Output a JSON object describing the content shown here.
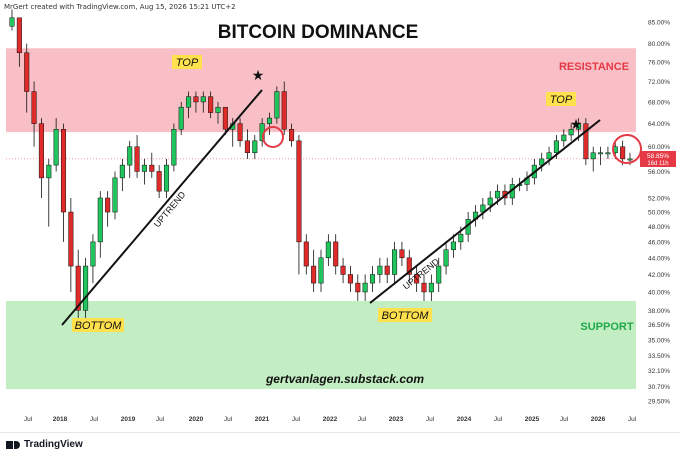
{
  "header": {
    "credit": "MrGert created with TradingView.com, Aug 15, 2026 15:21 UTC+2"
  },
  "footer": {
    "brand": "TradingView"
  },
  "chart_data": {
    "type": "candlestick",
    "title": "BITCOIN DOMINANCE",
    "watermark": "gertvanlagen.substack.com",
    "y_scale": "log",
    "ylim": [
      29.5,
      86
    ],
    "y_ticks": [
      "85.00%",
      "80.00%",
      "76.00%",
      "72.00%",
      "68.00%",
      "64.00%",
      "60.00%",
      "56.00%",
      "52.00%",
      "50.00%",
      "48.00%",
      "46.00%",
      "44.00%",
      "42.00%",
      "40.00%",
      "38.00%",
      "36.50%",
      "35.00%",
      "33.50%",
      "32.10%",
      "30.70%",
      "29.50%"
    ],
    "x_ticks": [
      "Jul",
      "2018",
      "Jul",
      "2019",
      "Jul",
      "2020",
      "Jul",
      "2021",
      "Jul",
      "2022",
      "Jul",
      "2023",
      "Jul",
      "2024",
      "Jul",
      "2025",
      "Jul",
      "2026",
      "Jul"
    ],
    "price_label": {
      "value": "58.85%",
      "countdown": "16d 11h"
    },
    "zones": [
      {
        "name": "resistance",
        "label": "RESISTANCE",
        "from": 62.5,
        "to": 79,
        "color": "#f8c0c6"
      },
      {
        "name": "support",
        "label": "SUPPORT",
        "from": 30.5,
        "to": 39.0,
        "color": "#c3eec3"
      }
    ],
    "annotations": [
      "TOP",
      "TOP",
      "BOTTOM",
      "BOTTOM",
      "UPTREND",
      "UPTREND"
    ],
    "colors": {
      "up": "#21c55d",
      "down": "#e02b2b",
      "label_bg": "#ffe14d",
      "resistance_text": "#e53945",
      "support_text": "#22a84a",
      "price_label": "#e53945"
    },
    "candles": [
      [
        84,
        88,
        83,
        86
      ],
      [
        86,
        86,
        75,
        78
      ],
      [
        78,
        80,
        66,
        70
      ],
      [
        70,
        72,
        60,
        64
      ],
      [
        64,
        65,
        52,
        55
      ],
      [
        55,
        58,
        48,
        57
      ],
      [
        57,
        65,
        56,
        63
      ],
      [
        63,
        64,
        46,
        50
      ],
      [
        50,
        52,
        40,
        43
      ],
      [
        43,
        45,
        36,
        38
      ],
      [
        38,
        44,
        37,
        43
      ],
      [
        43,
        47,
        41,
        46
      ],
      [
        46,
        53,
        44,
        52
      ],
      [
        52,
        53,
        48,
        50
      ],
      [
        50,
        56,
        49,
        55
      ],
      [
        55,
        58,
        53,
        57
      ],
      [
        57,
        61,
        55,
        60
      ],
      [
        60,
        62,
        55,
        56
      ],
      [
        56,
        58,
        54,
        57
      ],
      [
        57,
        59,
        55,
        56
      ],
      [
        56,
        57,
        52,
        53
      ],
      [
        53,
        58,
        52,
        57
      ],
      [
        57,
        64,
        56,
        63
      ],
      [
        63,
        68,
        62,
        67
      ],
      [
        67,
        70,
        65,
        69
      ],
      [
        69,
        70,
        66,
        68
      ],
      [
        68,
        70,
        66,
        69
      ],
      [
        69,
        70,
        65,
        66
      ],
      [
        66,
        68,
        64,
        67
      ],
      [
        67,
        67,
        62,
        63
      ],
      [
        63,
        65,
        60,
        64
      ],
      [
        64,
        65,
        60,
        61
      ],
      [
        61,
        63,
        58,
        59
      ],
      [
        59,
        62,
        58,
        61
      ],
      [
        61,
        65,
        60,
        64
      ],
      [
        64,
        66,
        62,
        65
      ],
      [
        65,
        71,
        64,
        70
      ],
      [
        70,
        72,
        62,
        63
      ],
      [
        63,
        64,
        60,
        61
      ],
      [
        61,
        62,
        42,
        46
      ],
      [
        46,
        47,
        42,
        43
      ],
      [
        43,
        45,
        40,
        41
      ],
      [
        41,
        45,
        40,
        44
      ],
      [
        44,
        47,
        43,
        46
      ],
      [
        46,
        47,
        42,
        43
      ],
      [
        43,
        44,
        41,
        42
      ],
      [
        42,
        43,
        40,
        41
      ],
      [
        41,
        42,
        39,
        40
      ],
      [
        40,
        42,
        39,
        41
      ],
      [
        41,
        43,
        40,
        42
      ],
      [
        42,
        44,
        41,
        43
      ],
      [
        43,
        44,
        41,
        42
      ],
      [
        42,
        46,
        41,
        45
      ],
      [
        45,
        46,
        43,
        44
      ],
      [
        44,
        45,
        41,
        42
      ],
      [
        42,
        43,
        40,
        41
      ],
      [
        41,
        42,
        39,
        40
      ],
      [
        40,
        42,
        39,
        41
      ],
      [
        41,
        44,
        40,
        43
      ],
      [
        43,
        46,
        42,
        45
      ],
      [
        45,
        47,
        44,
        46
      ],
      [
        46,
        48,
        45,
        47
      ],
      [
        47,
        50,
        46,
        49
      ],
      [
        49,
        51,
        48,
        50
      ],
      [
        50,
        52,
        49,
        51
      ],
      [
        51,
        53,
        50,
        52
      ],
      [
        52,
        54,
        51,
        53
      ],
      [
        53,
        54,
        51,
        52
      ],
      [
        52,
        55,
        51,
        54
      ],
      [
        54,
        55,
        53,
        54
      ],
      [
        54,
        56,
        53,
        55
      ],
      [
        55,
        58,
        54,
        57
      ],
      [
        57,
        59,
        56,
        58
      ],
      [
        58,
        60,
        57,
        59
      ],
      [
        59,
        62,
        58,
        61
      ],
      [
        61,
        63,
        60,
        62
      ],
      [
        62,
        64,
        61,
        63
      ],
      [
        63,
        65,
        61,
        64
      ],
      [
        64,
        65,
        57,
        58
      ],
      [
        58,
        60,
        56,
        59
      ],
      [
        59,
        60,
        57,
        59
      ],
      [
        59,
        60,
        58,
        59
      ],
      [
        59,
        61,
        58,
        60
      ],
      [
        60,
        61,
        57,
        58
      ],
      [
        58,
        59,
        57,
        58
      ]
    ]
  }
}
